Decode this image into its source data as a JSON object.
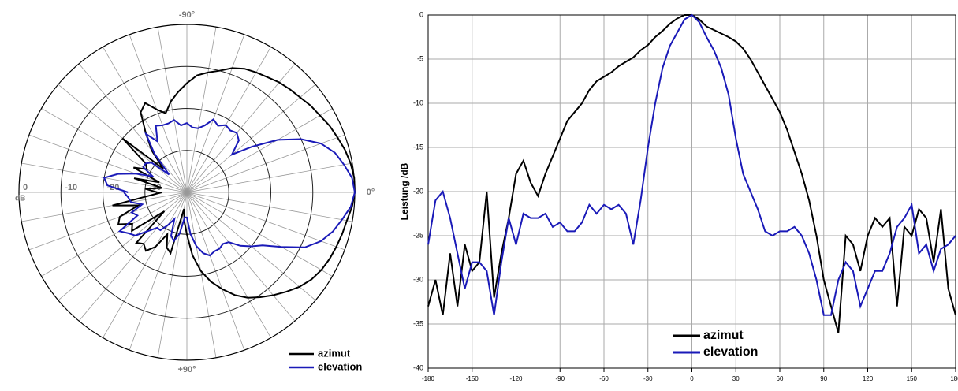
{
  "chart_data": [
    {
      "type": "polar",
      "theta": [
        -180,
        -175,
        -170,
        -165,
        -160,
        -155,
        -150,
        -145,
        -140,
        -135,
        -130,
        -125,
        -120,
        -115,
        -110,
        -105,
        -100,
        -95,
        -90,
        -85,
        -80,
        -75,
        -70,
        -65,
        -60,
        -55,
        -50,
        -45,
        -40,
        -35,
        -30,
        -25,
        -20,
        -15,
        -10,
        -5,
        0,
        5,
        10,
        15,
        20,
        25,
        30,
        35,
        40,
        45,
        50,
        55,
        60,
        65,
        70,
        75,
        80,
        85,
        90,
        95,
        100,
        105,
        110,
        115,
        120,
        125,
        130,
        135,
        140,
        145,
        150,
        155,
        160,
        165,
        170,
        175,
        180
      ],
      "series": [
        {
          "name": "azimut",
          "color": "#000000",
          "values": [
            -33,
            -30,
            -34,
            -27,
            -33,
            -26,
            -29,
            -28,
            -20,
            -32,
            -27,
            -23,
            -18,
            -16.5,
            -19,
            -20.5,
            -18,
            -16,
            -14,
            -12,
            -11,
            -10,
            -8.5,
            -7.5,
            -7,
            -6.5,
            -5.8,
            -5.3,
            -4.8,
            -4,
            -3.4,
            -2.5,
            -1.8,
            -1,
            -0.4,
            0,
            0,
            -0.5,
            -1.3,
            -1.7,
            -2.1,
            -2.5,
            -3,
            -3.8,
            -5,
            -6.5,
            -8,
            -9.5,
            -11,
            -13,
            -15.5,
            -18,
            -21,
            -25,
            -30,
            -33,
            -36,
            -25,
            -26,
            -29,
            -25,
            -23,
            -24,
            -23,
            -33,
            -24,
            -25,
            -22,
            -23,
            -28,
            -22,
            -31,
            -34
          ]
        },
        {
          "name": "elevation",
          "color": "#1a1ab8",
          "values": [
            -26,
            -21,
            -20,
            -23,
            -27,
            -31,
            -28,
            -28,
            -29,
            -34,
            -28,
            -23,
            -26,
            -22.5,
            -23,
            -23,
            -22.5,
            -24,
            -23.5,
            -24.5,
            -24.5,
            -23.5,
            -21.5,
            -22.5,
            -21.5,
            -22,
            -21.5,
            -22.5,
            -26,
            -21,
            -15,
            -10,
            -6,
            -3.5,
            -2,
            -0.5,
            0,
            -0.8,
            -2.5,
            -4,
            -6,
            -9,
            -14,
            -18,
            -20,
            -22,
            -24.5,
            -25,
            -24.5,
            -24.5,
            -24,
            -25,
            -27,
            -30,
            -34,
            -34,
            -30,
            -28,
            -29,
            -33,
            -31,
            -29,
            -29,
            -27,
            -24,
            -23,
            -21.5,
            -27,
            -26,
            -29,
            -26.5,
            -26,
            -25
          ]
        }
      ],
      "rlim": [
        -40,
        0
      ],
      "rticks": [
        0,
        -10,
        -20,
        -30
      ],
      "r_unit": "dB",
      "thetaticks": [
        {
          "value": -90,
          "label": "-90°"
        },
        {
          "value": 0,
          "label": "0°"
        },
        {
          "value": 90,
          "label": "+90°"
        }
      ]
    },
    {
      "type": "line",
      "y_label": "Leistung /dB",
      "x": [
        -180,
        -175,
        -170,
        -165,
        -160,
        -155,
        -150,
        -145,
        -140,
        -135,
        -130,
        -125,
        -120,
        -115,
        -110,
        -105,
        -100,
        -95,
        -90,
        -85,
        -80,
        -75,
        -70,
        -65,
        -60,
        -55,
        -50,
        -45,
        -40,
        -35,
        -30,
        -25,
        -20,
        -15,
        -10,
        -5,
        0,
        5,
        10,
        15,
        20,
        25,
        30,
        35,
        40,
        45,
        50,
        55,
        60,
        65,
        70,
        75,
        80,
        85,
        90,
        95,
        100,
        105,
        110,
        115,
        120,
        125,
        130,
        135,
        140,
        145,
        150,
        155,
        160,
        165,
        170,
        175,
        180
      ],
      "series": [
        {
          "name": "azimut",
          "color": "#000000",
          "values": [
            -33,
            -30,
            -34,
            -27,
            -33,
            -26,
            -29,
            -28,
            -20,
            -32,
            -27,
            -23,
            -18,
            -16.5,
            -19,
            -20.5,
            -18,
            -16,
            -14,
            -12,
            -11,
            -10,
            -8.5,
            -7.5,
            -7,
            -6.5,
            -5.8,
            -5.3,
            -4.8,
            -4,
            -3.4,
            -2.5,
            -1.8,
            -1,
            -0.4,
            0,
            0,
            -0.5,
            -1.3,
            -1.7,
            -2.1,
            -2.5,
            -3,
            -3.8,
            -5,
            -6.5,
            -8,
            -9.5,
            -11,
            -13,
            -15.5,
            -18,
            -21,
            -25,
            -30,
            -33,
            -36,
            -25,
            -26,
            -29,
            -25,
            -23,
            -24,
            -23,
            -33,
            -24,
            -25,
            -22,
            -23,
            -28,
            -22,
            -31,
            -34
          ]
        },
        {
          "name": "elevation",
          "color": "#1a1ab8",
          "values": [
            -26,
            -21,
            -20,
            -23,
            -27,
            -31,
            -28,
            -28,
            -29,
            -34,
            -28,
            -23,
            -26,
            -22.5,
            -23,
            -23,
            -22.5,
            -24,
            -23.5,
            -24.5,
            -24.5,
            -23.5,
            -21.5,
            -22.5,
            -21.5,
            -22,
            -21.5,
            -22.5,
            -26,
            -21,
            -15,
            -10,
            -6,
            -3.5,
            -2,
            -0.5,
            0,
            -0.8,
            -2.5,
            -4,
            -6,
            -9,
            -14,
            -18,
            -20,
            -22,
            -24.5,
            -25,
            -24.5,
            -24.5,
            -24,
            -25,
            -27,
            -30,
            -34,
            -34,
            -30,
            -28,
            -29,
            -33,
            -31,
            -29,
            -29,
            -27,
            -24,
            -23,
            -21.5,
            -27,
            -26,
            -29,
            -26.5,
            -26,
            -25
          ]
        }
      ],
      "xlim": [
        -180,
        180
      ],
      "xticks": [
        -180,
        -150,
        -120,
        -90,
        -60,
        -30,
        0,
        30,
        60,
        90,
        120,
        150,
        180
      ],
      "ylim": [
        -40,
        0
      ],
      "yticks": [
        0,
        -5,
        -10,
        -15,
        -20,
        -25,
        -30,
        -35,
        -40
      ],
      "grid": true
    }
  ]
}
